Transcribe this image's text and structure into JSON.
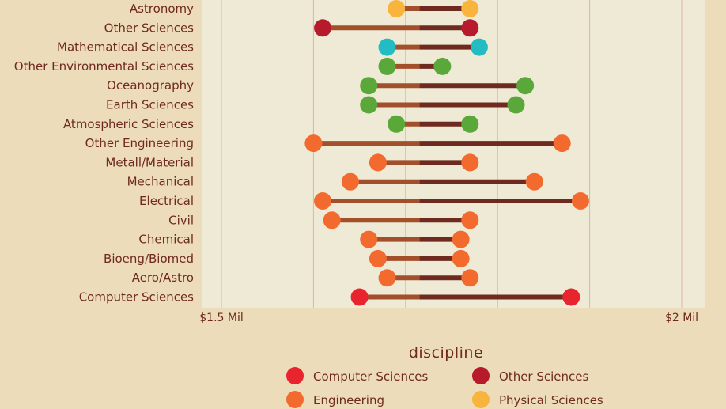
{
  "chart_data": {
    "type": "dumbbell",
    "categories": [
      "Astronomy",
      "Other Sciences",
      "Mathematical Sciences",
      "Other Environmental Sciences",
      "Oceanography",
      "Earth Sciences",
      "Atmospheric Sciences",
      "Other Engineering",
      "Metall/Material",
      "Mechanical",
      "Electrical",
      "Civil",
      "Chemical",
      "Bioeng/Biomed",
      "Aero/Astro",
      "Computer Sciences"
    ],
    "series": [
      {
        "values": [
          1.69,
          1.61,
          1.68,
          1.68,
          1.66,
          1.66,
          1.69,
          1.6,
          1.67,
          1.64,
          1.61,
          1.62,
          1.66,
          1.67,
          1.68,
          1.65
        ]
      },
      {
        "values": [
          1.77,
          1.77,
          1.78,
          1.74,
          1.83,
          1.82,
          1.77,
          1.87,
          1.77,
          1.84,
          1.89,
          1.77,
          1.76,
          1.76,
          1.77,
          1.88
        ]
      }
    ],
    "center_value": 1.715,
    "category_discipline": [
      "Physical Sciences",
      "Other Sciences",
      "Mathematical Sciences",
      "Environmental Sciences",
      "Environmental Sciences",
      "Environmental Sciences",
      "Environmental Sciences",
      "Engineering",
      "Engineering",
      "Engineering",
      "Engineering",
      "Engineering",
      "Engineering",
      "Engineering",
      "Engineering",
      "Computer Sciences"
    ],
    "xlim": [
      1.5,
      2.0
    ],
    "x_ticks": [
      {
        "value": 1.5,
        "label": "$1.5 Mil"
      },
      {
        "value": 2.0,
        "label": "$2 Mil"
      }
    ],
    "grid": true,
    "legend": {
      "title": "discipline",
      "placement": "bottom",
      "entries": [
        {
          "name": "Computer Sciences",
          "color": "#e8252e"
        },
        {
          "name": "Other Sciences",
          "color": "#b61a2c"
        },
        {
          "name": "Engineering",
          "color": "#f26a2e"
        },
        {
          "name": "Physical Sciences",
          "color": "#f8b43c"
        }
      ]
    },
    "colors": {
      "Computer Sciences": "#e8252e",
      "Other Sciences": "#b61a2c",
      "Engineering": "#f26a2e",
      "Physical Sciences": "#f8b43c",
      "Mathematical Sciences": "#23bcc2",
      "Environmental Sciences": "#5aa83a",
      "bar_left": "#a2502c",
      "bar_right": "#6e2a1f",
      "grid": "#d7b8a4",
      "plot_bg": "#efead6"
    }
  }
}
